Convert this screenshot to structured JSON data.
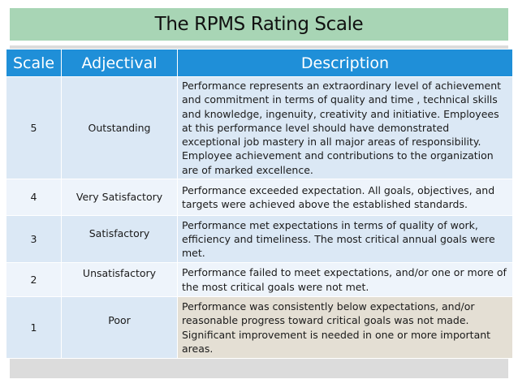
{
  "title": "The RPMS Rating Scale",
  "columns": {
    "scale": "Scale",
    "adjectival": "Adjectival",
    "description": "Description"
  },
  "rows": [
    {
      "scale": "5",
      "adjectival": "Outstanding",
      "description": "Performance represents an extraordinary level of achievement and commitment in terms of quality and time , technical skills and knowledge, ingenuity, creativity and initiative. Employees at this performance  level should have demonstrated exceptional job mastery in all major areas of responsibility. Employee achievement and contributions to the organization  are of marked excellence."
    },
    {
      "scale": "4",
      "adjectival": "Very Satisfactory",
      "description": "Performance exceeded expectation. All goals, objectives, and targets  were  achieved above the established standards."
    },
    {
      "scale": "3",
      "adjectival": "Satisfactory",
      "description": "Performance  met expectations in terms of quality of work, efficiency and timeliness. The most critical annual goals were met."
    },
    {
      "scale": "2",
      "adjectival": "Unsatisfactory",
      "description": "Performance failed to meet expectations,  and/or  one or more of the most critical goals  were not met."
    },
    {
      "scale": "1",
      "adjectival": "Poor",
      "description": "Performance was consistently below expectations, and/or reasonable progress toward  critical goals was not made. Significant improvement is needed in one or more important areas."
    }
  ]
}
